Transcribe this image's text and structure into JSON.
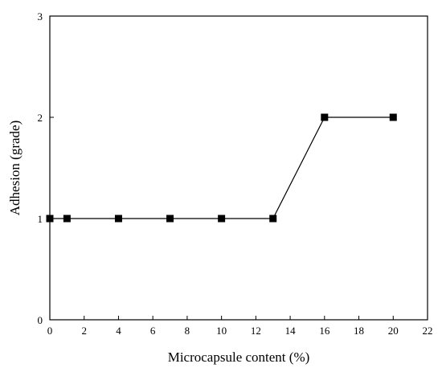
{
  "chart_data": {
    "type": "line",
    "title": "",
    "xlabel": "Microcapsule content (%)",
    "ylabel": "Adhesion (grade)",
    "xlim": [
      0,
      22
    ],
    "ylim": [
      0,
      3
    ],
    "x_ticks": [
      0,
      2,
      4,
      6,
      8,
      10,
      12,
      14,
      16,
      18,
      20,
      22
    ],
    "y_ticks": [
      0,
      1,
      2,
      3
    ],
    "grid": false,
    "legend": "none",
    "series": [
      {
        "x": [
          0,
          1,
          4,
          7,
          10,
          13,
          16,
          20
        ],
        "y": [
          1,
          1,
          1,
          1,
          1,
          1,
          2,
          2
        ],
        "color": "#000000",
        "marker": "square"
      }
    ]
  }
}
